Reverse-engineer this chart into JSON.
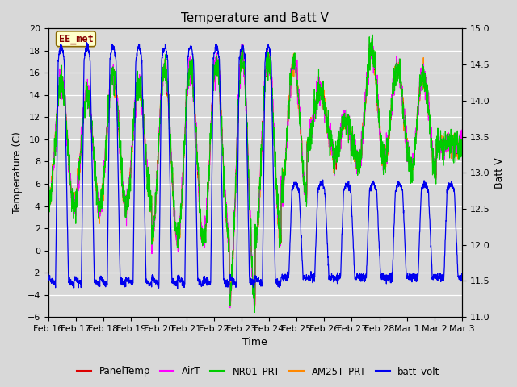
{
  "title": "Temperature and Batt V",
  "xlabel": "Time",
  "ylabel_left": "Temperature (C)",
  "ylabel_right": "Batt V",
  "annotation": "EE_met",
  "ylim_left": [
    -6,
    20
  ],
  "ylim_right": [
    11.0,
    15.0
  ],
  "yticks_left": [
    -6,
    -4,
    -2,
    0,
    2,
    4,
    6,
    8,
    10,
    12,
    14,
    16,
    18,
    20
  ],
  "yticks_right": [
    11.0,
    11.5,
    12.0,
    12.5,
    13.0,
    13.5,
    14.0,
    14.5,
    15.0
  ],
  "xtick_labels": [
    "Feb 16",
    "Feb 17",
    "Feb 18",
    "Feb 19",
    "Feb 20",
    "Feb 21",
    "Feb 22",
    "Feb 23",
    "Feb 24",
    "Feb 25",
    "Feb 26",
    "Feb 27",
    "Feb 28",
    "Mar 1",
    "Mar 2",
    "Mar 3"
  ],
  "colors": {
    "PanelTemp": "#dd0000",
    "AirT": "#ff00ff",
    "NR01_PRT": "#00cc00",
    "AM25T_PRT": "#ff8800",
    "batt_volt": "#0000ee"
  },
  "background_color": "#d8d8d8",
  "grid_color": "#ffffff",
  "title_fontsize": 11,
  "label_fontsize": 9,
  "tick_fontsize": 8
}
